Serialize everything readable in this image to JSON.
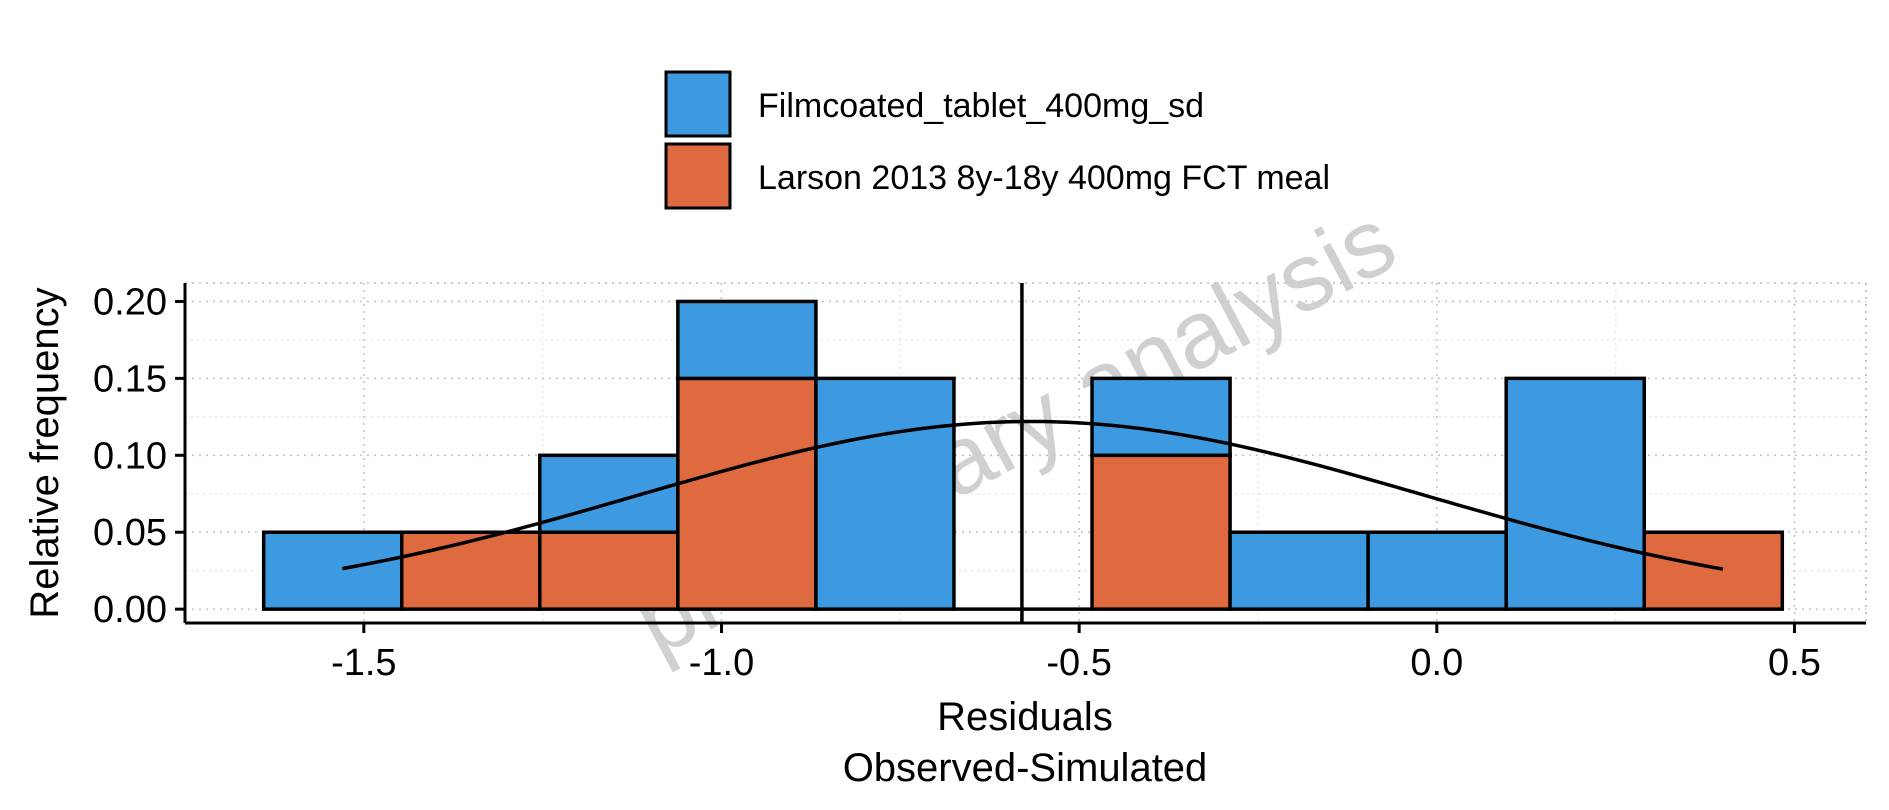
{
  "chart_data": {
    "type": "bar",
    "subtype": "stacked-histogram",
    "xlabel": "Residuals",
    "xlabel_line2": "Observed-Simulated",
    "ylabel": "Relative frequency",
    "xlim": [
      -1.75,
      0.6
    ],
    "ylim": [
      -0.009,
      0.212
    ],
    "x_ticks": [
      -1.5,
      -1.0,
      -0.5,
      0.0,
      0.5
    ],
    "x_tick_labels": [
      "-1.5",
      "-1.0",
      "-0.5",
      "0.0",
      "0.5"
    ],
    "y_ticks": [
      0.0,
      0.05,
      0.1,
      0.15,
      0.2
    ],
    "y_tick_labels": [
      "0.00",
      "0.05",
      "0.10",
      "0.15",
      "0.20"
    ],
    "grid": true,
    "legend_position": "top",
    "watermark": "preliminary analysis",
    "vertical_line_x": -0.58,
    "bins": [
      {
        "x0": -1.64,
        "x1": -1.447
      },
      {
        "x0": -1.447,
        "x1": -1.254
      },
      {
        "x0": -1.254,
        "x1": -1.061
      },
      {
        "x0": -1.061,
        "x1": -0.868
      },
      {
        "x0": -0.868,
        "x1": -0.675
      },
      {
        "x0": -0.675,
        "x1": -0.482
      },
      {
        "x0": -0.482,
        "x1": -0.289
      },
      {
        "x0": -0.289,
        "x1": -0.096
      },
      {
        "x0": -0.096,
        "x1": 0.097
      },
      {
        "x0": 0.097,
        "x1": 0.29
      },
      {
        "x0": 0.29,
        "x1": 0.483
      }
    ],
    "series": [
      {
        "name": "Larson 2013 8y-18y 400mg FCT meal",
        "color": "#E06A40",
        "values": [
          0.0,
          0.05,
          0.05,
          0.15,
          0.0,
          0.0,
          0.1,
          0.0,
          0.0,
          0.0,
          0.05
        ]
      },
      {
        "name": "Filmcoated_tablet_400mg_sd",
        "color": "#3E9AE0",
        "values": [
          0.05,
          0.0,
          0.05,
          0.05,
          0.15,
          0.0,
          0.05,
          0.05,
          0.05,
          0.15,
          0.0
        ]
      }
    ],
    "normal_curve": {
      "mean": -0.567,
      "sd": 0.55,
      "peak": 0.122,
      "x_range": [
        -1.53,
        0.4
      ],
      "color": "#000000"
    },
    "legend_order": [
      "Filmcoated_tablet_400mg_sd",
      "Larson 2013 8y-18y 400mg FCT meal"
    ]
  }
}
